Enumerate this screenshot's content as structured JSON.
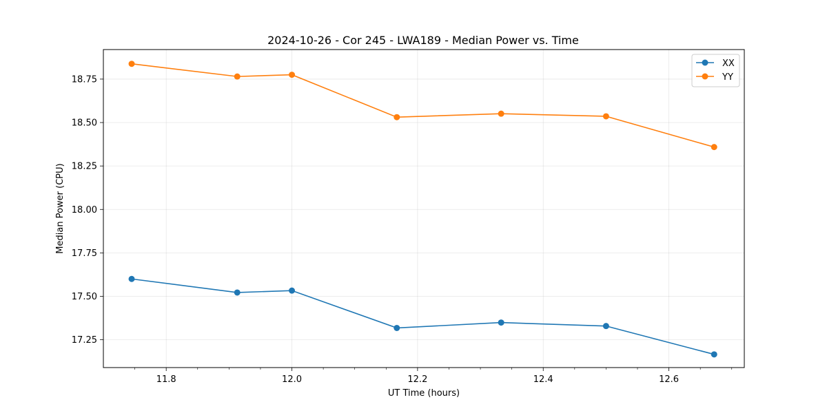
{
  "chart_data": {
    "type": "line",
    "title": "2024-10-26 - Cor 245 - LWA189 - Median Power vs. Time",
    "xlabel": "UT Time (hours)",
    "ylabel": "Median Power (CPU)",
    "xlim": [
      11.7,
      12.72
    ],
    "ylim": [
      17.09,
      18.92
    ],
    "x_ticks": [
      11.8,
      12.0,
      12.2,
      12.4,
      12.6
    ],
    "x_tick_labels": [
      "11.8",
      "12.0",
      "12.2",
      "12.4",
      "12.6"
    ],
    "x_minor_ticks": [
      11.75,
      11.85,
      11.9,
      11.95,
      12.05,
      12.1,
      12.15,
      12.25,
      12.3,
      12.35,
      12.45,
      12.5,
      12.55,
      12.65,
      12.7
    ],
    "y_ticks": [
      17.25,
      17.5,
      17.75,
      18.0,
      18.25,
      18.5,
      18.75
    ],
    "y_tick_labels": [
      "17.25",
      "17.50",
      "17.75",
      "18.00",
      "18.25",
      "18.50",
      "18.75"
    ],
    "grid": true,
    "legend_position": "top-right",
    "x": [
      11.745,
      11.913,
      12.0,
      12.167,
      12.333,
      12.5,
      12.672
    ],
    "series": [
      {
        "name": "XX",
        "color": "#1f77b4",
        "values": [
          17.6,
          17.522,
          17.533,
          17.318,
          17.349,
          17.329,
          17.166
        ]
      },
      {
        "name": "YY",
        "color": "#ff7f0e",
        "values": [
          18.838,
          18.765,
          18.775,
          18.531,
          18.551,
          18.536,
          18.359
        ]
      }
    ]
  }
}
